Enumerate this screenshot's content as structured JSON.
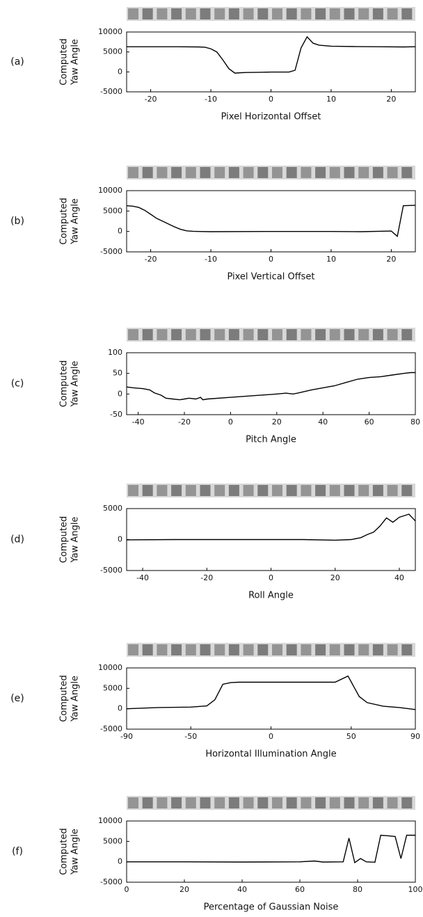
{
  "chart_data": [
    {
      "type": "line",
      "label": "(a)",
      "ylabel": [
        "Computed",
        "Yaw Angle"
      ],
      "xlabel": "Pixel Horizontal Offset",
      "color": "#000000",
      "xlim": [
        -24,
        24
      ],
      "ylim": [
        -5000,
        10000
      ],
      "xticks": [
        -20,
        -10,
        0,
        10,
        20
      ],
      "yticks": [
        10000,
        5000,
        0,
        -5000
      ],
      "x": [
        -24,
        -20,
        -16,
        -12,
        -11,
        -10,
        -9,
        -8,
        -7,
        -6,
        -5,
        -4,
        -2,
        0,
        2,
        3,
        4,
        5,
        6,
        7,
        8,
        10,
        14,
        18,
        22,
        24
      ],
      "values": [
        6300,
        6300,
        6300,
        6250,
        6200,
        5800,
        5000,
        3000,
        800,
        -300,
        -200,
        -150,
        -100,
        -50,
        -50,
        -50,
        400,
        6000,
        8800,
        7200,
        6700,
        6450,
        6350,
        6300,
        6250,
        6300
      ]
    },
    {
      "type": "line",
      "label": "(b)",
      "ylabel": [
        "Computed",
        "Yaw Angle"
      ],
      "xlabel": "Pixel Vertical Offset",
      "color": "#000000",
      "xlim": [
        -24,
        24
      ],
      "ylim": [
        -5000,
        10000
      ],
      "xticks": [
        -20,
        -10,
        0,
        10,
        20
      ],
      "yticks": [
        10000,
        5000,
        0,
        -5000
      ],
      "x": [
        -24,
        -23,
        -22,
        -21,
        -20,
        -19,
        -18,
        -17,
        -16,
        -15,
        -14,
        -13,
        -12,
        -10,
        0,
        10,
        15,
        20,
        21,
        22,
        24
      ],
      "values": [
        6300,
        6200,
        5900,
        5200,
        4200,
        3200,
        2500,
        1800,
        1100,
        500,
        150,
        50,
        0,
        -50,
        0,
        0,
        -50,
        100,
        -1200,
        6300,
        6400
      ]
    },
    {
      "type": "line",
      "label": "(c)",
      "ylabel": [
        "Computed",
        "Yaw Angle"
      ],
      "xlabel": "Pitch Angle",
      "color": "#000000",
      "xlim": [
        -45,
        80
      ],
      "ylim": [
        -50,
        100
      ],
      "xticks": [
        -40,
        -20,
        0,
        20,
        40,
        60,
        80
      ],
      "yticks": [
        100,
        50,
        0,
        -50
      ],
      "x": [
        -45,
        -42,
        -38,
        -35,
        -33,
        -30,
        -28,
        -25,
        -22,
        -20,
        -18,
        -15,
        -13,
        -12,
        -10,
        0,
        10,
        20,
        24,
        27,
        29,
        35,
        40,
        45,
        50,
        55,
        60,
        65,
        70,
        75,
        78,
        80
      ],
      "values": [
        17,
        15,
        13,
        10,
        3,
        -3,
        -10,
        -12,
        -14,
        -12,
        -10,
        -12,
        -8,
        -14,
        -12,
        -8,
        -4,
        0,
        2,
        0,
        2,
        10,
        15,
        20,
        28,
        36,
        40,
        42,
        46,
        50,
        52,
        52
      ]
    },
    {
      "type": "line",
      "label": "(d)",
      "ylabel": [
        "Computed",
        "Yaw Angle"
      ],
      "xlabel": "Roll Angle",
      "color": "#000000",
      "xlim": [
        -45,
        45
      ],
      "ylim": [
        -5000,
        5000
      ],
      "xticks": [
        -40,
        -20,
        0,
        20,
        40
      ],
      "yticks": [
        5000,
        0,
        -5000
      ],
      "x": [
        -45,
        -30,
        -10,
        10,
        20,
        25,
        28,
        30,
        32,
        34,
        36,
        38,
        40,
        43,
        45
      ],
      "values": [
        -50,
        0,
        0,
        0,
        -100,
        0,
        300,
        800,
        1200,
        2200,
        3500,
        2800,
        3600,
        4100,
        3000
      ]
    },
    {
      "type": "line",
      "label": "(e)",
      "ylabel": [
        "Computed",
        "Yaw Angle"
      ],
      "xlabel": "Horizontal Illumination Angle",
      "color": "#000000",
      "xlim": [
        -90,
        90
      ],
      "ylim": [
        -5000,
        10000
      ],
      "xticks": [
        -90,
        -50,
        0,
        50,
        90
      ],
      "yticks": [
        10000,
        5000,
        0,
        -5000
      ],
      "x": [
        -90,
        -70,
        -50,
        -40,
        -35,
        -30,
        -25,
        -20,
        0,
        40,
        48,
        55,
        60,
        70,
        80,
        90
      ],
      "values": [
        0,
        300,
        400,
        700,
        2200,
        6000,
        6400,
        6500,
        6500,
        6500,
        8000,
        3000,
        1500,
        600,
        300,
        -200
      ]
    },
    {
      "type": "line",
      "label": "(f)",
      "ylabel": [
        "Computed",
        "Yaw Angle"
      ],
      "xlabel": "Percentage of Gaussian Noise",
      "color": "#000000",
      "xlim": [
        0,
        100
      ],
      "ylim": [
        -5000,
        10000
      ],
      "xticks": [
        0,
        20,
        40,
        60,
        80,
        100
      ],
      "yticks": [
        10000,
        5000,
        0,
        -5000
      ],
      "x": [
        0,
        20,
        40,
        60,
        65,
        68,
        75,
        77,
        79,
        81,
        83,
        86,
        88,
        90,
        93,
        95,
        97,
        100
      ],
      "values": [
        0,
        0,
        -50,
        0,
        200,
        -50,
        0,
        5800,
        -200,
        800,
        0,
        -100,
        6500,
        6400,
        6200,
        800,
        6500,
        6500
      ]
    }
  ]
}
